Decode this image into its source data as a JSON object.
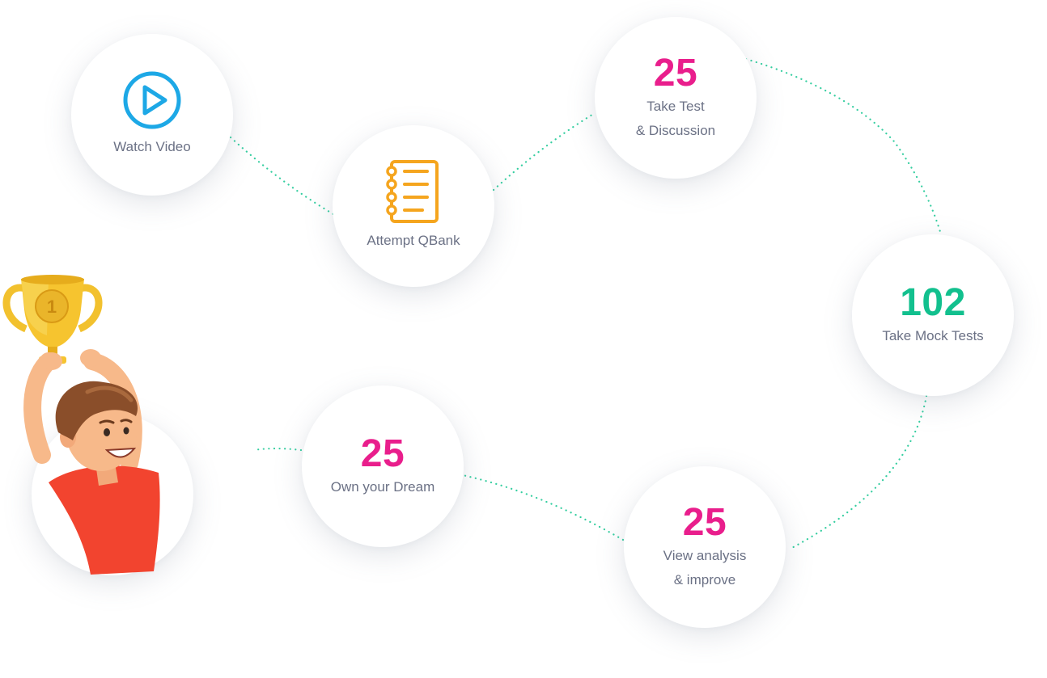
{
  "colors": {
    "pink": "#e91e8c",
    "green": "#12c08e",
    "blue": "#1da8e6",
    "orange": "#f5a51e",
    "label": "#6b7185",
    "dots": "#35cea0"
  },
  "steps": {
    "watch_video": {
      "label": "Watch Video",
      "icon": "play-icon"
    },
    "attempt_qbank": {
      "label": "Attempt QBank",
      "icon": "notebook-icon"
    },
    "take_test": {
      "number": "25",
      "label_line1": "Take Test",
      "label_line2": "& Discussion"
    },
    "mock_tests": {
      "number": "102",
      "label": "Take Mock Tests"
    },
    "view_analysis": {
      "number": "25",
      "label_line1": "View analysis",
      "label_line2": "& improve"
    },
    "own_dream": {
      "number": "25",
      "label": "Own your Dream"
    }
  },
  "illustration": {
    "icon": "trophy-boy-illustration",
    "trophy_badge": "1"
  }
}
